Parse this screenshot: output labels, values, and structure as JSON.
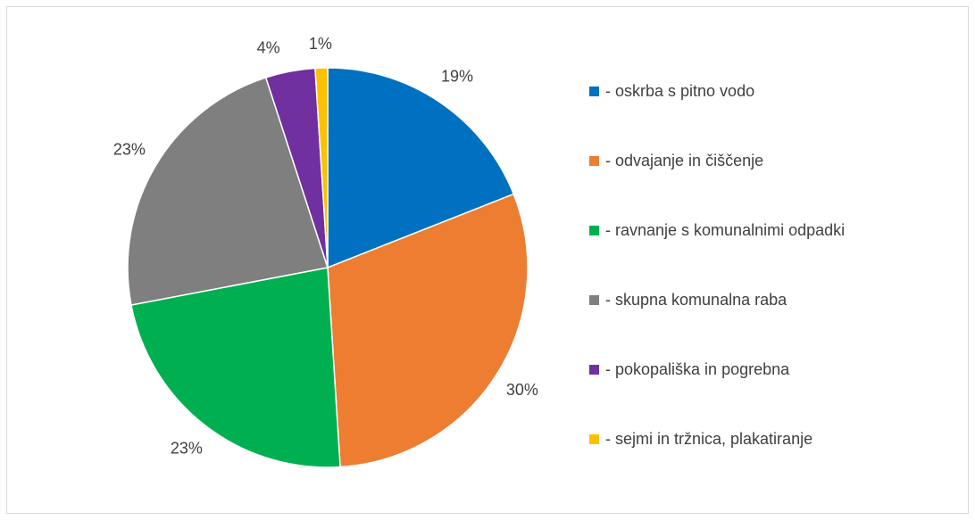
{
  "chart_data": {
    "type": "pie",
    "categories": [
      "- oskrba s pitno vodo",
      "- odvajanje in čiščenje",
      "- ravnanje s komunalnimi odpadki",
      "- skupna komunalna raba",
      "- pokopališka in pogrebna",
      "- sejmi in tržnica, plakatiranje"
    ],
    "values": [
      19,
      30,
      23,
      23,
      4,
      1
    ],
    "value_labels": [
      "19%",
      "30%",
      "23%",
      "23%",
      "4%",
      "1%"
    ],
    "colors": [
      "#0070c0",
      "#ed7d31",
      "#00b050",
      "#7f7f7f",
      "#7030a0",
      "#ffc000"
    ],
    "legend": "right"
  }
}
